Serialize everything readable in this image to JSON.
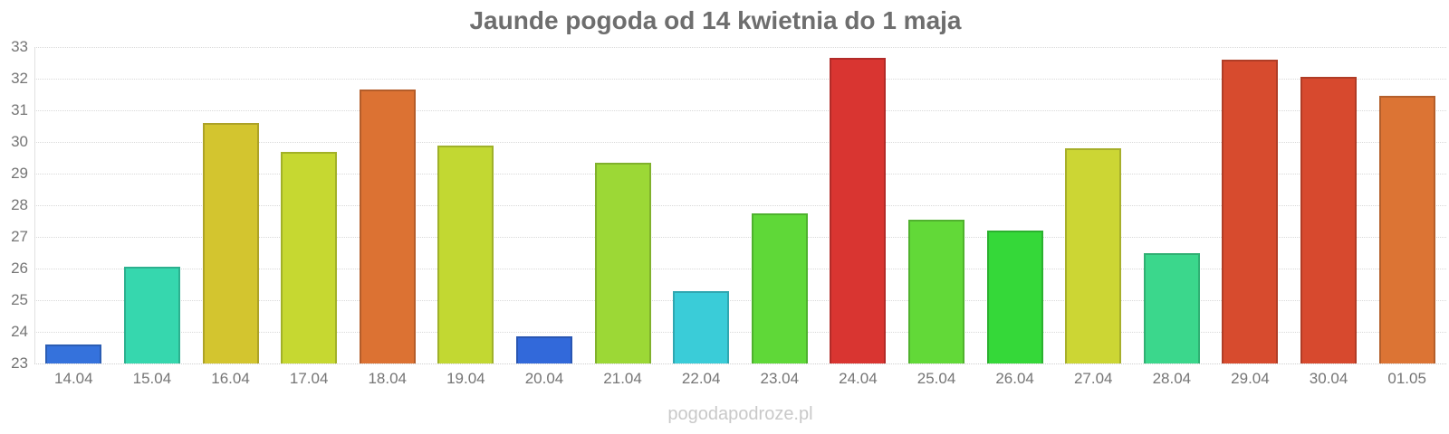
{
  "title": "Jaunde pogoda od 14 kwietnia do 1 maja",
  "watermark": "pogodapodroze.pl",
  "colors": {
    "title_text": "#6e6e6e",
    "axis_text": "#757575",
    "gridline": "#d9d9d9",
    "axis_line": "#e0e0e0",
    "watermark_text": "#c9c9c9",
    "background": "#ffffff"
  },
  "chart_data": {
    "type": "bar",
    "title": "Jaunde pogoda od 14 kwietnia do 1 maja",
    "xlabel": "",
    "ylabel": "",
    "categories": [
      "14.04",
      "15.04",
      "16.04",
      "17.04",
      "18.04",
      "19.04",
      "20.04",
      "21.04",
      "22.04",
      "23.04",
      "24.04",
      "25.04",
      "26.04",
      "27.04",
      "28.04",
      "29.04",
      "30.04",
      "01.05"
    ],
    "values": [
      23.6,
      26.05,
      30.6,
      29.7,
      31.65,
      29.9,
      23.85,
      29.35,
      25.3,
      27.75,
      32.65,
      27.55,
      27.2,
      29.8,
      26.5,
      32.6,
      32.05,
      31.45
    ],
    "bar_colors": [
      "#3572dc",
      "#36d7ae",
      "#d3c52f",
      "#c6d831",
      "#dc7233",
      "#c2d832",
      "#3269da",
      "#9cd836",
      "#3accd8",
      "#5fd838",
      "#d93531",
      "#62d938",
      "#35d839",
      "#ccd634",
      "#3bd78c",
      "#d74b2e",
      "#d7492e",
      "#dc7434"
    ],
    "ylim": [
      23,
      33
    ],
    "yticks": [
      23,
      24,
      25,
      26,
      27,
      28,
      29,
      30,
      31,
      32,
      33
    ],
    "grid": true,
    "legend": "none",
    "watermark": "pogodapodroze.pl"
  }
}
